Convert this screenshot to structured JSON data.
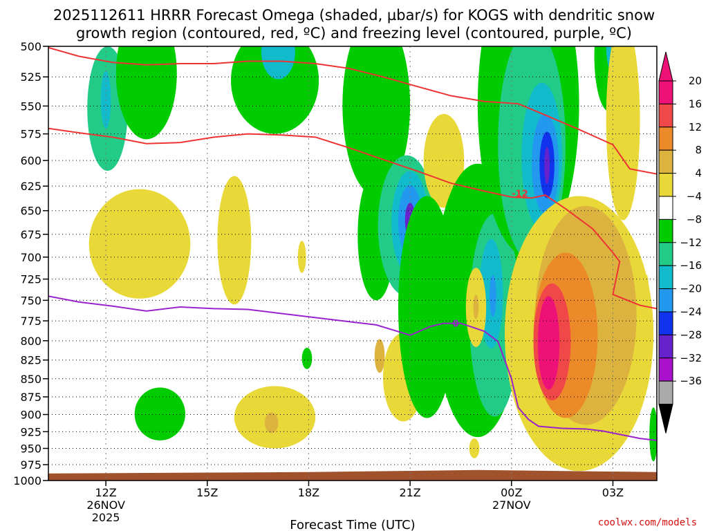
{
  "chart_data": {
    "type": "heatmap",
    "title_line1": "2025112611 HRRR Forecast Omega (shaded, µbar/s) for KOGS with dendritic snow",
    "title_line2": "growth region (contoured, red, ºC) and freezing level (contoured, purple, ºC)",
    "xlabel": "Forecast Time (UTC)",
    "credit": "coolwx.com/models",
    "x_range_hours": [
      10.3,
      28.3
    ],
    "y_levels": [
      500,
      525,
      550,
      575,
      600,
      625,
      650,
      675,
      700,
      725,
      750,
      775,
      800,
      825,
      850,
      875,
      900,
      925,
      950,
      975,
      1000
    ],
    "y_tick_labels": [
      "500",
      "525",
      "550",
      "575",
      "600",
      "625",
      "650",
      "675",
      "700",
      "725",
      "750",
      "775",
      "800",
      "825",
      "850",
      "875",
      "900",
      "925",
      "950",
      "975",
      "1000"
    ],
    "x_ticks": [
      {
        "hour": 12,
        "label": "12Z",
        "date": "26NOV",
        "year": "2025"
      },
      {
        "hour": 15,
        "label": "15Z",
        "date": "",
        "year": ""
      },
      {
        "hour": 18,
        "label": "18Z",
        "date": "",
        "year": ""
      },
      {
        "hour": 21,
        "label": "21Z",
        "date": "",
        "year": ""
      },
      {
        "hour": 24,
        "label": "00Z",
        "date": "27NOV",
        "year": ""
      },
      {
        "hour": 27,
        "label": "03Z",
        "date": "",
        "year": ""
      }
    ],
    "colorbar": {
      "labels": [
        "20",
        "16",
        "12",
        "8",
        "4",
        "−4",
        "−8",
        "−12",
        "−16",
        "−20",
        "−24",
        "−28",
        "−32",
        "−36"
      ],
      "bins": [
        {
          "min": 20,
          "max": 24,
          "color": "#ee1177"
        },
        {
          "min": 16,
          "max": 20,
          "color": "#f04848"
        },
        {
          "min": 12,
          "max": 16,
          "color": "#ec8a2a"
        },
        {
          "min": 8,
          "max": 12,
          "color": "#ddb340"
        },
        {
          "min": 4,
          "max": 8,
          "color": "#e8d838"
        },
        {
          "min": -4,
          "max": 4,
          "color": "#ffffff"
        },
        {
          "min": -8,
          "max": -4,
          "color": "#00cc00"
        },
        {
          "min": -12,
          "max": -8,
          "color": "#22cc88"
        },
        {
          "min": -16,
          "max": -12,
          "color": "#11bbcc"
        },
        {
          "min": -20,
          "max": -16,
          "color": "#2299ee"
        },
        {
          "min": -24,
          "max": -20,
          "color": "#1133ee"
        },
        {
          "min": -28,
          "max": -24,
          "color": "#6622cc"
        },
        {
          "min": -32,
          "max": -28,
          "color": "#aa11cc"
        },
        {
          "min": -36,
          "max": -32,
          "color": "#aaaaaa"
        }
      ],
      "top_arrow_color": "#ee1177",
      "bottom_arrow_color": "#000000"
    },
    "omega_features": [
      {
        "h": 12.05,
        "p": 555,
        "rh": 0.6,
        "rp": 55,
        "v": -10
      },
      {
        "h": 12.0,
        "p": 545,
        "rh": 0.15,
        "rp": 25,
        "v": -14
      },
      {
        "h": 13.2,
        "p": 525,
        "rh": 0.9,
        "rp": 55,
        "v": -6
      },
      {
        "h": 13.6,
        "p": 900,
        "rh": 0.75,
        "rp": 38,
        "v": -6
      },
      {
        "h": 13.0,
        "p": 688,
        "rh": 1.5,
        "rp": 60,
        "v": 6
      },
      {
        "h": 15.8,
        "p": 685,
        "rh": 0.5,
        "rp": 70,
        "v": 6
      },
      {
        "h": 17.8,
        "p": 700,
        "rh": 0.12,
        "rp": 18,
        "v": 6
      },
      {
        "h": 17.0,
        "p": 905,
        "rh": 1.2,
        "rp": 45,
        "v": 6
      },
      {
        "h": 16.9,
        "p": 912,
        "rh": 0.2,
        "rp": 15,
        "v": 10
      },
      {
        "h": 17.95,
        "p": 823,
        "rh": 0.15,
        "rp": 14,
        "v": -6
      },
      {
        "h": 17.0,
        "p": 530,
        "rh": 1.3,
        "rp": 45,
        "v": -6
      },
      {
        "h": 17.1,
        "p": 505,
        "rh": 0.5,
        "rp": 22,
        "v": -14
      },
      {
        "h": 20.0,
        "p": 555,
        "rh": 1.0,
        "rp": 80,
        "v": -6
      },
      {
        "h": 20.0,
        "p": 680,
        "rh": 0.55,
        "rp": 70,
        "v": -6
      },
      {
        "h": 20.9,
        "p": 670,
        "rh": 0.85,
        "rp": 75,
        "v": -10
      },
      {
        "h": 21.0,
        "p": 665,
        "rh": 0.55,
        "rp": 55,
        "v": -14
      },
      {
        "h": 21.0,
        "p": 662,
        "rh": 0.35,
        "rp": 38,
        "v": -18
      },
      {
        "h": 21.0,
        "p": 660,
        "rh": 0.15,
        "rp": 18,
        "v": -26
      },
      {
        "h": 20.8,
        "p": 850,
        "rh": 0.6,
        "rp": 60,
        "v": 6
      },
      {
        "h": 20.1,
        "p": 820,
        "rh": 0.15,
        "rp": 22,
        "v": 10
      },
      {
        "h": 22.0,
        "p": 602,
        "rh": 0.6,
        "rp": 45,
        "v": 6
      },
      {
        "h": 21.5,
        "p": 770,
        "rh": 0.85,
        "rp": 135,
        "v": -6
      },
      {
        "h": 23.0,
        "p": 768,
        "rh": 1.3,
        "rp": 165,
        "v": -6
      },
      {
        "h": 23.5,
        "p": 778,
        "rh": 0.75,
        "rp": 125,
        "v": -10
      },
      {
        "h": 23.4,
        "p": 745,
        "rh": 0.35,
        "rp": 65,
        "v": -14
      },
      {
        "h": 23.45,
        "p": 745,
        "rh": 0.1,
        "rp": 25,
        "v": -18
      },
      {
        "h": 22.95,
        "p": 760,
        "rh": 0.3,
        "rp": 48,
        "v": 6
      },
      {
        "h": 22.95,
        "p": 758,
        "rh": 0.08,
        "rp": 15,
        "v": 10
      },
      {
        "h": 22.9,
        "p": 950,
        "rh": 0.15,
        "rp": 15,
        "v": 6
      },
      {
        "h": 24.5,
        "p": 565,
        "rh": 1.5,
        "rp": 135,
        "v": -6
      },
      {
        "h": 24.6,
        "p": 595,
        "rh": 1.0,
        "rp": 110,
        "v": -10
      },
      {
        "h": 24.9,
        "p": 600,
        "rh": 0.6,
        "rp": 70,
        "v": -14
      },
      {
        "h": 25.0,
        "p": 605,
        "rh": 0.4,
        "rp": 48,
        "v": -18
      },
      {
        "h": 25.05,
        "p": 605,
        "rh": 0.22,
        "rp": 32,
        "v": -22
      },
      {
        "h": 25.05,
        "p": 605,
        "rh": 0.08,
        "rp": 18,
        "v": -26
      },
      {
        "h": 26.9,
        "p": 510,
        "rh": 0.45,
        "rp": 45,
        "v": -6
      },
      {
        "h": 27.0,
        "p": 500,
        "rh": 0.2,
        "rp": 22,
        "v": -14
      },
      {
        "h": 26.0,
        "p": 810,
        "rh": 2.2,
        "rp": 175,
        "v": 6
      },
      {
        "h": 26.2,
        "p": 780,
        "rh": 1.5,
        "rp": 135,
        "v": 10
      },
      {
        "h": 25.6,
        "p": 800,
        "rh": 0.95,
        "rp": 105,
        "v": 14
      },
      {
        "h": 25.2,
        "p": 805,
        "rh": 0.55,
        "rp": 75,
        "v": 18
      },
      {
        "h": 25.1,
        "p": 805,
        "rh": 0.32,
        "rp": 60,
        "v": 22
      },
      {
        "h": 27.3,
        "p": 570,
        "rh": 0.5,
        "rp": 90,
        "v": 6
      },
      {
        "h": 28.0,
        "p": 760,
        "rh": 0.08,
        "rp": 40,
        "v": 6
      },
      {
        "h": 28.2,
        "p": 930,
        "rh": 0.12,
        "rp": 40,
        "v": -6
      }
    ],
    "dgz_contours": [
      {
        "label": "",
        "color": "#ee3333",
        "points": [
          [
            10.3,
            501
          ],
          [
            11.2,
            508
          ],
          [
            12.2,
            513
          ],
          [
            13.2,
            515
          ],
          [
            14.2,
            514
          ],
          [
            15.2,
            514
          ],
          [
            16.2,
            512
          ],
          [
            17.2,
            512
          ],
          [
            18.2,
            514
          ],
          [
            19.2,
            518
          ],
          [
            20.2,
            525
          ],
          [
            21.2,
            533
          ],
          [
            22.2,
            541
          ],
          [
            23.2,
            546
          ],
          [
            24.2,
            548
          ],
          [
            25.0,
            558
          ],
          [
            26.0,
            571
          ],
          [
            27.0,
            585
          ],
          [
            27.5,
            608
          ],
          [
            28.3,
            613
          ]
        ]
      },
      {
        "label": "-12",
        "color": "#ee3333",
        "points": [
          [
            10.3,
            570
          ],
          [
            11.2,
            574
          ],
          [
            12.2,
            578
          ],
          [
            13.2,
            584
          ],
          [
            14.2,
            583
          ],
          [
            15.2,
            578
          ],
          [
            16.2,
            575
          ],
          [
            17.2,
            576
          ],
          [
            18.2,
            578
          ],
          [
            19.2,
            588
          ],
          [
            20.2,
            599
          ],
          [
            21.2,
            610
          ],
          [
            22.2,
            622
          ],
          [
            23.2,
            630
          ],
          [
            24.0,
            636
          ],
          [
            24.6,
            637
          ],
          [
            25.0,
            634
          ],
          [
            25.6,
            648
          ],
          [
            26.4,
            669
          ],
          [
            27.0,
            695
          ],
          [
            27.2,
            705
          ],
          [
            27.0,
            743
          ],
          [
            27.8,
            756
          ],
          [
            28.3,
            760
          ]
        ]
      }
    ],
    "freezing_contour": {
      "label": "0",
      "color": "#9922cc",
      "points": [
        [
          10.3,
          745
        ],
        [
          11.2,
          752
        ],
        [
          12.2,
          757
        ],
        [
          13.2,
          763
        ],
        [
          14.2,
          758
        ],
        [
          15.2,
          760
        ],
        [
          16.2,
          761
        ],
        [
          17.2,
          766
        ],
        [
          18.2,
          771
        ],
        [
          19.2,
          776
        ],
        [
          20.0,
          780
        ],
        [
          21.0,
          793
        ],
        [
          21.6,
          782
        ],
        [
          22.0,
          778
        ],
        [
          22.5,
          778
        ],
        [
          23.2,
          788
        ],
        [
          23.6,
          801
        ],
        [
          24.0,
          850
        ],
        [
          24.2,
          890
        ],
        [
          24.5,
          907
        ],
        [
          24.8,
          917
        ],
        [
          25.5,
          920
        ],
        [
          26.2,
          921
        ],
        [
          26.7,
          924
        ],
        [
          27.2,
          929
        ],
        [
          27.8,
          935
        ],
        [
          28.3,
          938
        ]
      ]
    },
    "terrain_color": "#a0522d",
    "grid": true
  }
}
